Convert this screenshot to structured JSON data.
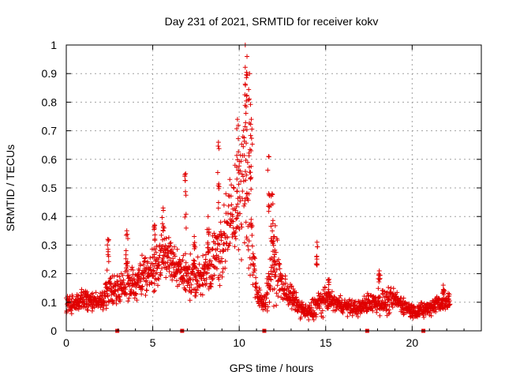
{
  "chart_data": {
    "type": "scatter",
    "title": "Day 231 of 2021, SRMTID for receiver kokv",
    "xlabel": "GPS time / hours",
    "ylabel": "SRMTID / TECUs",
    "xlim": [
      0,
      24
    ],
    "ylim": [
      0,
      1
    ],
    "xticks": [
      0,
      5,
      10,
      15,
      20
    ],
    "yticks": [
      0,
      0.1,
      0.2,
      0.3,
      0.4,
      0.5,
      0.6,
      0.7,
      0.8,
      0.9,
      1
    ],
    "xtick_labels": [
      "0",
      "5",
      "10",
      "15",
      "20"
    ],
    "ytick_labels": [
      "0",
      "0.1",
      "0.2",
      "0.3",
      "0.4",
      "0.5",
      "0.6",
      "0.7",
      "0.8",
      "0.9",
      "1"
    ],
    "grid": true,
    "color": "#e00000",
    "gap_markers_x": [
      2.95,
      6.7,
      11.45,
      17.4,
      20.65
    ],
    "envelope": {
      "x": [
        0.0,
        1.0,
        2.0,
        2.5,
        3.0,
        3.5,
        4.0,
        4.5,
        5.0,
        5.5,
        6.0,
        6.5,
        7.0,
        7.5,
        8.0,
        8.5,
        9.0,
        9.5,
        10.0,
        10.3,
        10.6,
        11.0,
        11.5,
        12.0,
        12.5,
        13.0,
        13.5,
        14.0,
        14.5,
        15.0,
        15.5,
        16.0,
        16.5,
        17.0,
        17.5,
        18.0,
        18.5,
        19.0,
        19.5,
        20.0,
        20.5,
        21.0,
        21.5,
        22.0,
        22.2
      ],
      "mid": [
        0.09,
        0.11,
        0.1,
        0.15,
        0.14,
        0.18,
        0.16,
        0.2,
        0.2,
        0.26,
        0.26,
        0.2,
        0.2,
        0.17,
        0.21,
        0.25,
        0.3,
        0.38,
        0.45,
        0.55,
        0.42,
        0.12,
        0.1,
        0.25,
        0.15,
        0.12,
        0.08,
        0.06,
        0.09,
        0.11,
        0.1,
        0.09,
        0.08,
        0.08,
        0.1,
        0.1,
        0.1,
        0.11,
        0.09,
        0.07,
        0.07,
        0.08,
        0.1,
        0.1,
        0.1
      ],
      "spread": [
        0.03,
        0.04,
        0.03,
        0.08,
        0.06,
        0.09,
        0.06,
        0.08,
        0.08,
        0.09,
        0.1,
        0.08,
        0.08,
        0.07,
        0.08,
        0.1,
        0.14,
        0.16,
        0.18,
        0.3,
        0.3,
        0.05,
        0.03,
        0.15,
        0.06,
        0.05,
        0.03,
        0.03,
        0.06,
        0.04,
        0.03,
        0.03,
        0.03,
        0.03,
        0.04,
        0.04,
        0.05,
        0.04,
        0.03,
        0.03,
        0.03,
        0.03,
        0.04,
        0.04,
        0.04
      ]
    },
    "peaks": [
      {
        "x": 2.4,
        "y": 0.32
      },
      {
        "x": 3.5,
        "y": 0.35
      },
      {
        "x": 5.1,
        "y": 0.37
      },
      {
        "x": 5.6,
        "y": 0.43
      },
      {
        "x": 6.9,
        "y": 0.55
      },
      {
        "x": 7.4,
        "y": 0.33
      },
      {
        "x": 8.2,
        "y": 0.4
      },
      {
        "x": 8.8,
        "y": 0.66
      },
      {
        "x": 9.9,
        "y": 0.74
      },
      {
        "x": 10.35,
        "y": 1.0
      },
      {
        "x": 10.45,
        "y": 0.96
      },
      {
        "x": 10.6,
        "y": 0.9
      },
      {
        "x": 10.7,
        "y": 0.74
      },
      {
        "x": 11.7,
        "y": 0.61
      },
      {
        "x": 11.9,
        "y": 0.48
      },
      {
        "x": 12.0,
        "y": 0.33
      },
      {
        "x": 14.5,
        "y": 0.31
      },
      {
        "x": 15.2,
        "y": 0.18
      },
      {
        "x": 18.1,
        "y": 0.21
      },
      {
        "x": 21.8,
        "y": 0.16
      }
    ]
  }
}
